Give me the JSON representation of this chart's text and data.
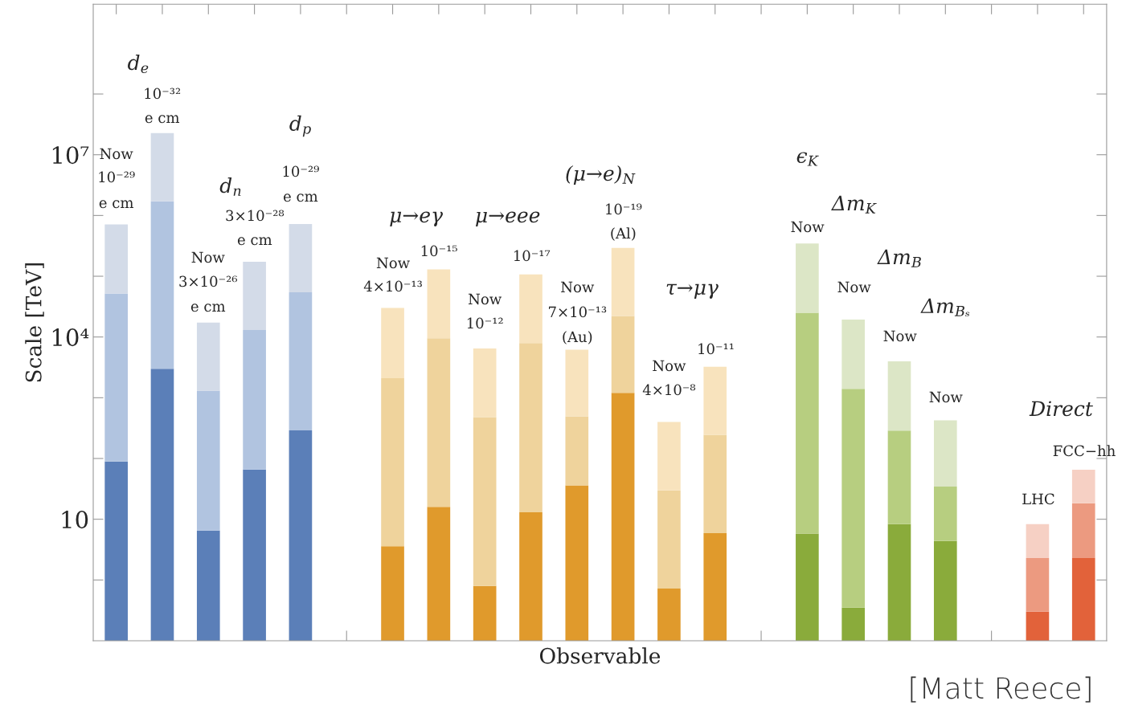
{
  "chart_data": {
    "type": "bar",
    "stacked": true,
    "log": "y",
    "grid": false,
    "legend": false,
    "tick_labels": "y",
    "xlabel": "Observable",
    "ylabel": "Scale [TeV]",
    "categories": [
      null,
      null,
      null,
      null,
      null,
      null,
      null,
      null,
      null,
      null,
      null,
      null,
      null,
      null,
      null,
      null,
      null,
      null,
      null,
      null,
      null,
      null
    ],
    "ylim": [
      0.1,
      3000000000
    ],
    "yticks": [
      {
        "value": 1,
        "label": null
      },
      10,
      {
        "value": 100,
        "label": null
      },
      {
        "value": 1000,
        "label": null
      },
      {
        "value": 10000,
        "label": "10⁴"
      },
      {
        "value": 100000,
        "label": null
      },
      {
        "value": 1000000,
        "label": null
      },
      {
        "value": 10000000,
        "label": "10⁷"
      },
      {
        "value": 100000000,
        "label": null
      }
    ],
    "series": [
      {
        "values": [
          89,
          3000,
          6.5,
          66,
          290,
          null,
          3.6,
          16,
          0.8,
          13,
          36,
          1200,
          0.72,
          5.9,
          null,
          5.8,
          0.35,
          8.3,
          4.4,
          null,
          0.3,
          2.3
        ],
        "colors": [
          "#5b7fb8",
          "#5b7fb8",
          "#5b7fb8",
          "#5b7fb8",
          "#5b7fb8",
          null,
          "#e09a2c",
          "#e09a2c",
          "#e09a2c",
          "#e09a2c",
          "#e09a2c",
          "#e09a2c",
          "#e09a2c",
          "#e09a2c",
          null,
          "#8aab3b",
          "#8aab3b",
          "#8aab3b",
          "#8aab3b",
          null,
          "#e2623a",
          "#e2623a"
        ]
      },
      {
        "values": [
          52000,
          1700000,
          1300,
          13000,
          54000,
          null,
          2100,
          9500,
          480,
          7900,
          460,
          21000,
          29,
          240,
          null,
          25000,
          1400,
          280,
          30,
          null,
          2.0,
          16
        ],
        "colors": [
          "#b1c4e0",
          "#b1c4e0",
          "#b1c4e0",
          "#b1c4e0",
          "#b1c4e0",
          null,
          "#efd39c",
          "#efd39c",
          "#efd39c",
          "#efd39c",
          "#efd39c",
          "#efd39c",
          "#efd39c",
          "#efd39c",
          null,
          "#b7ce80",
          "#b7ce80",
          "#b7ce80",
          "#b7ce80",
          null,
          "#ec9a80",
          "#ec9a80"
        ]
      },
      {
        "values": [
          660000,
          21000000,
          16000,
          160000,
          670000,
          null,
          28000,
          120000,
          6000,
          99000,
          5700,
          270000,
          370,
          3000,
          null,
          320000,
          18000,
          3700,
          390,
          null,
          6.0,
          47
        ],
        "colors": [
          "#d3dbe8",
          "#d3dbe8",
          "#d3dbe8",
          "#d3dbe8",
          "#d3dbe8",
          null,
          "#f8e3bd",
          "#f8e3bd",
          "#f8e3bd",
          "#f8e3bd",
          "#f8e3bd",
          "#f8e3bd",
          "#f8e3bd",
          "#f8e3bd",
          null,
          "#dce6c6",
          "#dce6c6",
          "#dce6c6",
          "#dce6c6",
          null,
          "#f6d0c4",
          "#f6d0c4"
        ]
      }
    ],
    "annotations": [
      "d$_{e}$",
      "10⁻³²",
      "e cm",
      "Now",
      "10⁻²⁹",
      "e cm",
      "d$_{n}$",
      "3×10⁻²⁸",
      "e cm",
      "d$_{p}$",
      "10⁻²⁹",
      "e cm",
      "Now",
      "3×10⁻²⁶",
      "e cm",
      "μ→eγ",
      "μ→eee",
      "(μ→e)$_{N}$",
      "Now",
      "4×10⁻¹³",
      "10⁻¹⁵",
      "Now",
      "10⁻¹²",
      "10⁻¹⁷",
      "Now",
      "7×10⁻¹³",
      "(Au)",
      "10⁻¹⁹",
      "(Al)",
      "τ→μγ",
      "Now",
      "4×10⁻⁸",
      "10⁻¹¹",
      "ϵ$_{K}$",
      "Δm$_{K}$",
      "Now",
      "Δm$_{B}$",
      "Now",
      "Δm$_{Bₛ}$",
      "Now",
      "Now",
      "Direct",
      "LHC",
      "FCC−hh",
      "[Matt Reece]"
    ]
  }
}
